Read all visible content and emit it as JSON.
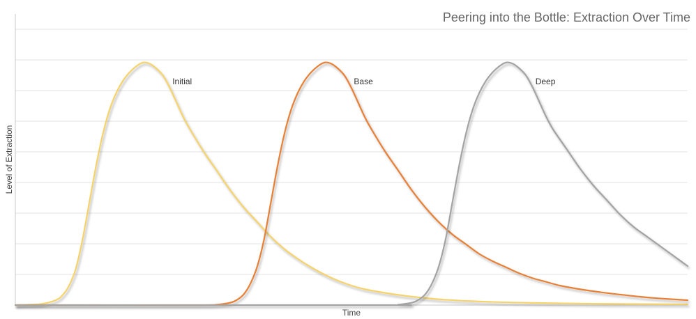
{
  "chart_data": {
    "type": "line",
    "title": "Peering into the Bottle: Extraction Over Time",
    "xlabel": "Time",
    "ylabel": "Level of Extraction",
    "xlim": [
      0,
      100
    ],
    "ylim": [
      0,
      1
    ],
    "grid": true,
    "x_ticks_visible": false,
    "y_ticks_visible": false,
    "series": [
      {
        "name": "Initial",
        "color": "#F6D36A",
        "points": [
          [
            0,
            0
          ],
          [
            2,
            0.002
          ],
          [
            4,
            0.005
          ],
          [
            6,
            0.02
          ],
          [
            7,
            0.04
          ],
          [
            8,
            0.08
          ],
          [
            9,
            0.15
          ],
          [
            10,
            0.27
          ],
          [
            11,
            0.42
          ],
          [
            12,
            0.57
          ],
          [
            13,
            0.7
          ],
          [
            14,
            0.8
          ],
          [
            15,
            0.87
          ],
          [
            16,
            0.92
          ],
          [
            17,
            0.955
          ],
          [
            18,
            0.98
          ],
          [
            19,
            0.995
          ],
          [
            20,
            0.99
          ],
          [
            21,
            0.97
          ],
          [
            22,
            0.94
          ],
          [
            23,
            0.89
          ],
          [
            24,
            0.83
          ],
          [
            25,
            0.77
          ],
          [
            26,
            0.72
          ],
          [
            28,
            0.63
          ],
          [
            30,
            0.55
          ],
          [
            32,
            0.47
          ],
          [
            34,
            0.4
          ],
          [
            36,
            0.34
          ],
          [
            38,
            0.28
          ],
          [
            40,
            0.23
          ],
          [
            42,
            0.19
          ],
          [
            44,
            0.155
          ],
          [
            46,
            0.125
          ],
          [
            48,
            0.1
          ],
          [
            50,
            0.08
          ],
          [
            52,
            0.065
          ],
          [
            55,
            0.05
          ],
          [
            58,
            0.038
          ],
          [
            61,
            0.029
          ],
          [
            64,
            0.022
          ],
          [
            68,
            0.016
          ],
          [
            72,
            0.012
          ],
          [
            77,
            0.009
          ],
          [
            82,
            0.007
          ],
          [
            88,
            0.005
          ],
          [
            94,
            0.004
          ],
          [
            100,
            0.003
          ]
        ]
      },
      {
        "name": "Base",
        "color": "#E88035",
        "points": [
          [
            0,
            0
          ],
          [
            26,
            0
          ],
          [
            30,
            0.002
          ],
          [
            32,
            0.01
          ],
          [
            33,
            0.022
          ],
          [
            34,
            0.045
          ],
          [
            35,
            0.09
          ],
          [
            36,
            0.16
          ],
          [
            37,
            0.27
          ],
          [
            38,
            0.42
          ],
          [
            39,
            0.57
          ],
          [
            40,
            0.7
          ],
          [
            41,
            0.8
          ],
          [
            42,
            0.87
          ],
          [
            43,
            0.92
          ],
          [
            44,
            0.955
          ],
          [
            45,
            0.98
          ],
          [
            46,
            0.995
          ],
          [
            47,
            0.99
          ],
          [
            48,
            0.97
          ],
          [
            49,
            0.94
          ],
          [
            50,
            0.89
          ],
          [
            51,
            0.83
          ],
          [
            52,
            0.77
          ],
          [
            53,
            0.72
          ],
          [
            55,
            0.63
          ],
          [
            57,
            0.55
          ],
          [
            59,
            0.47
          ],
          [
            61,
            0.4
          ],
          [
            63,
            0.34
          ],
          [
            65,
            0.29
          ],
          [
            67,
            0.25
          ],
          [
            69,
            0.21
          ],
          [
            71,
            0.18
          ],
          [
            73,
            0.155
          ],
          [
            75,
            0.13
          ],
          [
            77,
            0.11
          ],
          [
            79,
            0.095
          ],
          [
            81,
            0.08
          ],
          [
            84,
            0.065
          ],
          [
            87,
            0.053
          ],
          [
            90,
            0.043
          ],
          [
            93,
            0.034
          ],
          [
            96,
            0.027
          ],
          [
            100,
            0.02
          ]
        ]
      },
      {
        "name": "Deep",
        "color": "#A3A3A3",
        "points": [
          [
            0,
            0
          ],
          [
            54,
            0
          ],
          [
            57,
            0.002
          ],
          [
            59,
            0.01
          ],
          [
            60,
            0.022
          ],
          [
            61,
            0.045
          ],
          [
            62,
            0.09
          ],
          [
            63,
            0.16
          ],
          [
            64,
            0.27
          ],
          [
            65,
            0.42
          ],
          [
            66,
            0.57
          ],
          [
            67,
            0.7
          ],
          [
            68,
            0.8
          ],
          [
            69,
            0.87
          ],
          [
            70,
            0.92
          ],
          [
            71,
            0.955
          ],
          [
            72,
            0.98
          ],
          [
            73,
            0.995
          ],
          [
            74,
            0.99
          ],
          [
            75,
            0.97
          ],
          [
            76,
            0.94
          ],
          [
            77,
            0.89
          ],
          [
            78,
            0.83
          ],
          [
            79,
            0.77
          ],
          [
            80,
            0.72
          ],
          [
            82,
            0.64
          ],
          [
            84,
            0.56
          ],
          [
            86,
            0.49
          ],
          [
            88,
            0.43
          ],
          [
            90,
            0.37
          ],
          [
            92,
            0.32
          ],
          [
            94,
            0.28
          ],
          [
            96,
            0.24
          ],
          [
            98,
            0.2
          ],
          [
            100,
            0.16
          ]
        ]
      }
    ]
  }
}
